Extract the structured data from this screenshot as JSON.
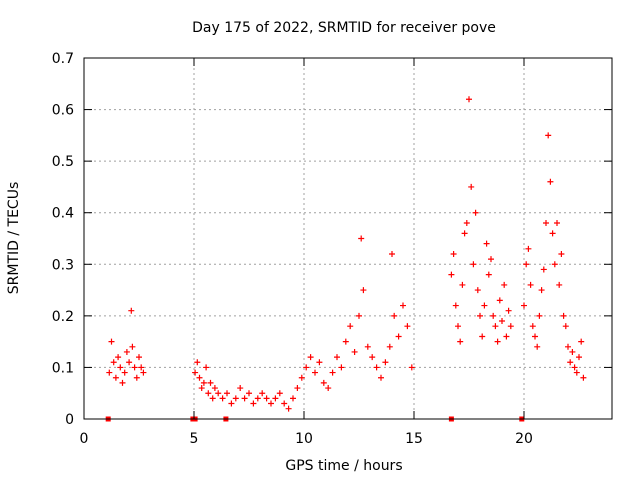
{
  "chart_data": {
    "type": "scatter",
    "title": "Day 175 of 2022, SRMTID for receiver pove",
    "xlabel": "GPS time / hours",
    "ylabel": "SRMTID / TECUs",
    "xlim": [
      0,
      24
    ],
    "ylim": [
      0,
      0.7
    ],
    "xticks": [
      0,
      5,
      10,
      15,
      20
    ],
    "yticks": [
      0,
      0.1,
      0.2,
      0.3,
      0.4,
      0.5,
      0.6,
      0.7
    ],
    "ytick_labels": [
      "0",
      "0.1",
      "0.2",
      "0.3",
      "0.4",
      "0.5",
      "0.6",
      "0.7"
    ],
    "grid": true,
    "marker": "+",
    "series_color": "#ff0000",
    "baseline_markers_x": [
      1.1,
      4.95,
      5.05,
      6.45,
      16.7,
      19.9
    ],
    "series": [
      {
        "name": "SRMTID",
        "x": [
          1.15,
          1.25,
          1.35,
          1.45,
          1.55,
          1.65,
          1.75,
          1.85,
          1.95,
          2.05,
          2.15,
          2.2,
          2.3,
          2.4,
          2.5,
          2.6,
          2.7,
          5.05,
          5.15,
          5.25,
          5.35,
          5.45,
          5.55,
          5.65,
          5.75,
          5.85,
          5.95,
          6.1,
          6.3,
          6.5,
          6.7,
          6.9,
          7.1,
          7.3,
          7.5,
          7.7,
          7.9,
          8.1,
          8.3,
          8.5,
          8.7,
          8.9,
          9.1,
          9.3,
          9.5,
          9.7,
          9.9,
          10.1,
          10.3,
          10.5,
          10.7,
          10.9,
          11.1,
          11.3,
          11.5,
          11.7,
          11.9,
          12.1,
          12.3,
          12.5,
          12.6,
          12.7,
          12.9,
          13.1,
          13.3,
          13.5,
          13.7,
          13.9,
          14.0,
          14.1,
          14.3,
          14.5,
          14.7,
          14.9,
          16.7,
          16.8,
          16.9,
          17.0,
          17.1,
          17.2,
          17.3,
          17.4,
          17.5,
          17.6,
          17.7,
          17.8,
          17.9,
          18.0,
          18.1,
          18.2,
          18.3,
          18.4,
          18.5,
          18.6,
          18.7,
          18.8,
          18.9,
          19.0,
          19.1,
          19.2,
          19.3,
          19.4,
          20.0,
          20.1,
          20.2,
          20.3,
          20.4,
          20.5,
          20.6,
          20.7,
          20.8,
          20.9,
          21.0,
          21.1,
          21.2,
          21.3,
          21.4,
          21.5,
          21.6,
          21.7,
          21.8,
          21.9,
          22.0,
          22.1,
          22.2,
          22.3,
          22.4,
          22.5,
          22.6,
          22.7
        ],
        "y": [
          0.09,
          0.15,
          0.11,
          0.08,
          0.12,
          0.1,
          0.07,
          0.09,
          0.13,
          0.11,
          0.21,
          0.14,
          0.1,
          0.08,
          0.12,
          0.1,
          0.09,
          0.09,
          0.11,
          0.08,
          0.06,
          0.07,
          0.1,
          0.05,
          0.07,
          0.04,
          0.06,
          0.05,
          0.04,
          0.05,
          0.03,
          0.04,
          0.06,
          0.04,
          0.05,
          0.03,
          0.04,
          0.05,
          0.04,
          0.03,
          0.04,
          0.05,
          0.03,
          0.02,
          0.04,
          0.06,
          0.08,
          0.1,
          0.12,
          0.09,
          0.11,
          0.07,
          0.06,
          0.09,
          0.12,
          0.1,
          0.15,
          0.18,
          0.13,
          0.2,
          0.35,
          0.25,
          0.14,
          0.12,
          0.1,
          0.08,
          0.11,
          0.14,
          0.32,
          0.2,
          0.16,
          0.22,
          0.18,
          0.1,
          0.28,
          0.32,
          0.22,
          0.18,
          0.15,
          0.26,
          0.36,
          0.38,
          0.62,
          0.45,
          0.3,
          0.4,
          0.25,
          0.2,
          0.16,
          0.22,
          0.34,
          0.28,
          0.31,
          0.2,
          0.18,
          0.15,
          0.23,
          0.19,
          0.26,
          0.16,
          0.21,
          0.18,
          0.22,
          0.3,
          0.33,
          0.26,
          0.18,
          0.16,
          0.14,
          0.2,
          0.25,
          0.29,
          0.38,
          0.55,
          0.46,
          0.36,
          0.3,
          0.38,
          0.26,
          0.32,
          0.2,
          0.18,
          0.14,
          0.11,
          0.13,
          0.1,
          0.09,
          0.12,
          0.15,
          0.08
        ]
      }
    ]
  }
}
